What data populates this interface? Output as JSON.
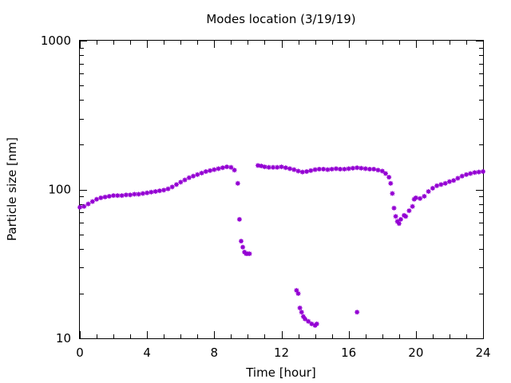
{
  "chart_data": {
    "type": "scatter",
    "title": "Modes location (3/19/19)",
    "xlabel": "Time [hour]",
    "ylabel": "Particle size [nm]",
    "xlim": [
      0,
      24
    ],
    "ylim": [
      10,
      1000
    ],
    "yscale": "log",
    "grid": false,
    "xticks": [
      0,
      4,
      8,
      12,
      16,
      20,
      24
    ],
    "yticks": [
      10,
      100,
      1000
    ],
    "point_color": "#9400d3",
    "series": [
      {
        "x": [
          0.0,
          0.25,
          0.5,
          0.75,
          1.0,
          1.25,
          1.5,
          1.75,
          2.0,
          2.25,
          2.5,
          2.75,
          3.0,
          3.25,
          3.5,
          3.75,
          4.0,
          4.25,
          4.5,
          4.75,
          5.0,
          5.25,
          5.5,
          5.75,
          6.0,
          6.25,
          6.5,
          6.75,
          7.0,
          7.25,
          7.5,
          7.75,
          8.0,
          8.25,
          8.5,
          8.75,
          9.0,
          9.2,
          9.4,
          9.5,
          9.6,
          9.7,
          9.8,
          9.9,
          10.0,
          10.1,
          10.6,
          10.8,
          11.0,
          11.25,
          11.5,
          11.75,
          12.0,
          12.25,
          12.5,
          12.75,
          13.0,
          13.25,
          13.5,
          13.75,
          14.0,
          14.25,
          14.5,
          14.75,
          15.0,
          15.25,
          15.5,
          15.75,
          16.0,
          16.25,
          16.5,
          16.75,
          17.0,
          17.25,
          17.5,
          17.75,
          18.0,
          18.2,
          18.4,
          18.5,
          18.6,
          18.7,
          18.8,
          18.9,
          19.0,
          19.1,
          19.3,
          19.4,
          19.6,
          19.8,
          19.9,
          20.0,
          20.25,
          20.5,
          20.75,
          21.0,
          21.25,
          21.5,
          21.75,
          22.0,
          22.25,
          22.5,
          22.75,
          23.0,
          23.25,
          23.5,
          23.75,
          24.0,
          12.9,
          13.0,
          13.1,
          13.2,
          13.3,
          13.4,
          13.6,
          13.8,
          14.0,
          14.1,
          16.5
        ],
        "y": [
          76,
          77,
          80,
          83,
          86,
          88,
          89,
          90,
          91,
          91,
          91,
          92,
          92,
          93,
          93,
          94,
          95,
          96,
          97,
          98,
          99,
          101,
          104,
          108,
          112,
          116,
          120,
          123,
          126,
          129,
          132,
          134,
          136,
          138,
          140,
          142,
          141,
          135,
          110,
          63,
          45,
          41,
          38,
          37,
          37,
          37,
          145,
          144,
          142,
          141,
          141,
          141,
          142,
          140,
          138,
          136,
          133,
          131,
          132,
          134,
          136,
          137,
          137,
          136,
          137,
          138,
          137,
          137,
          138,
          139,
          140,
          139,
          138,
          137,
          137,
          135,
          133,
          128,
          121,
          110,
          94,
          75,
          66,
          61,
          59,
          63,
          67,
          66,
          72,
          77,
          86,
          88,
          87,
          90,
          97,
          102,
          106,
          108,
          110,
          113,
          115,
          119,
          123,
          126,
          128,
          130,
          131,
          132,
          21,
          20,
          16,
          15,
          14,
          13.5,
          13,
          12.5,
          12.2,
          12.5,
          15
        ]
      }
    ]
  }
}
